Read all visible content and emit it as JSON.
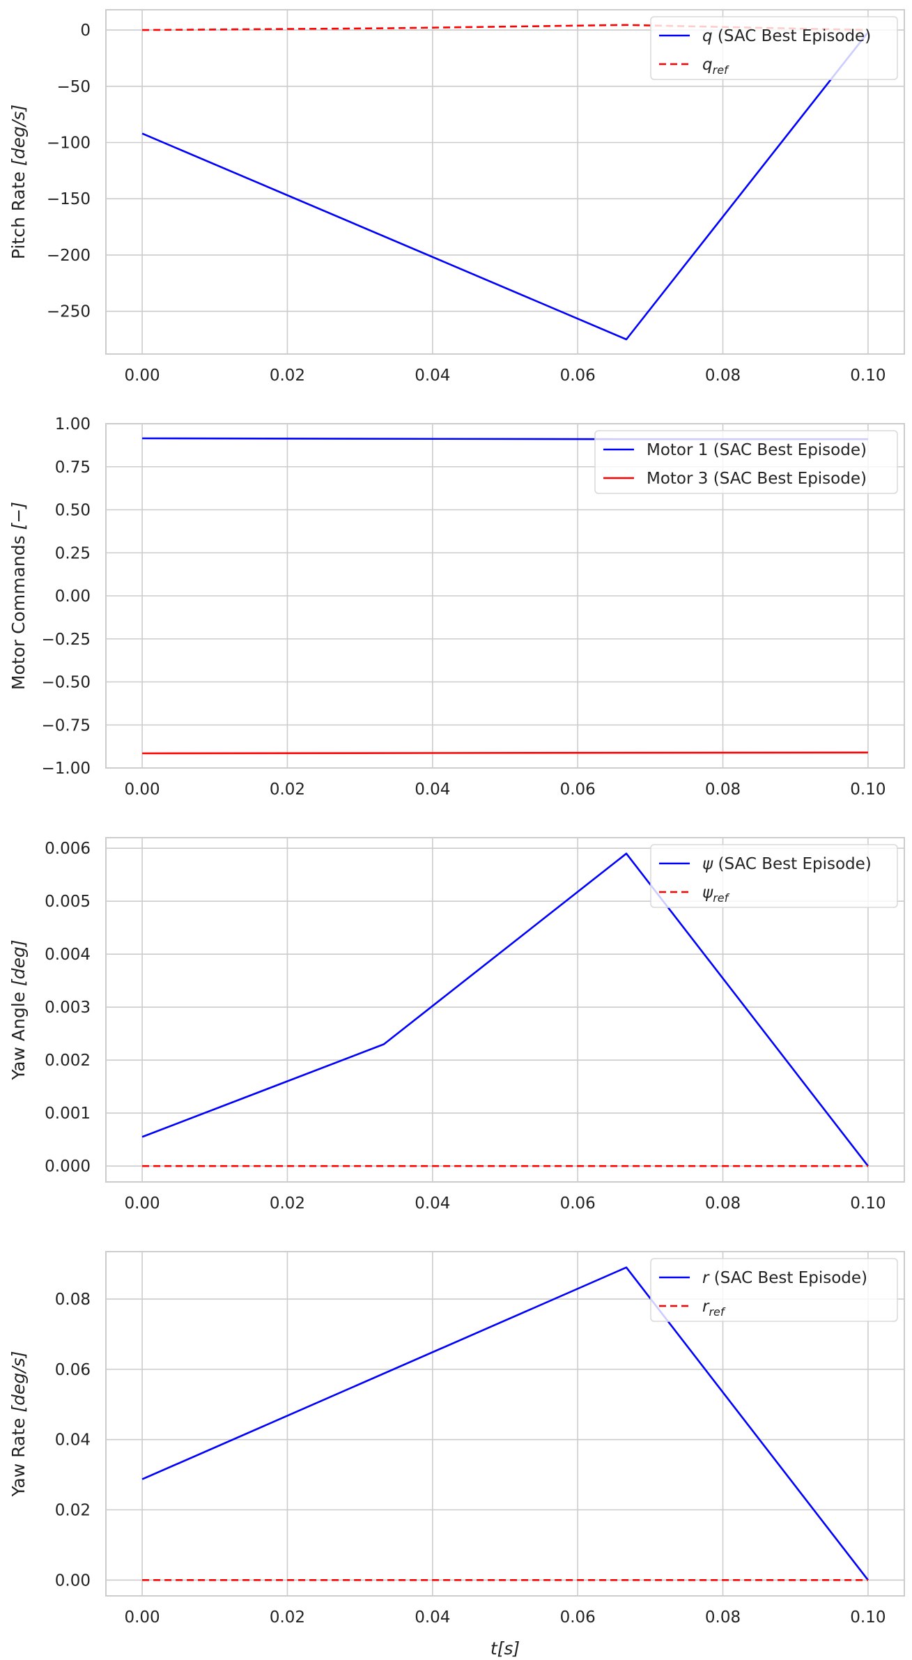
{
  "figure": {
    "xlabel_var": "t",
    "xlabel_unit": "[s]"
  },
  "colors": {
    "grid": "#cccccc",
    "frame": "#cccccc",
    "series_blue": "#0000ff",
    "series_red": "#ff0000",
    "background": "#ffffff"
  },
  "chart_data": [
    {
      "type": "line",
      "ylabel_text": "Pitch Rate ",
      "ylabel_unit": "[deg/s]",
      "xlim": [
        -0.005,
        0.105
      ],
      "ylim": [
        -288,
        18
      ],
      "x_ticks": [
        0.0,
        0.02,
        0.04,
        0.06,
        0.08,
        0.1
      ],
      "x_tick_labels": [
        "0.00",
        "0.02",
        "0.04",
        "0.06",
        "0.08",
        "0.10"
      ],
      "y_ticks": [
        0,
        -50,
        -100,
        -150,
        -200,
        -250
      ],
      "y_tick_labels": [
        "0",
        "−50",
        "−100",
        "−150",
        "−200",
        "−250"
      ],
      "grid": true,
      "legend_position": "top-right",
      "series": [
        {
          "name_var": "q",
          "name_sub": "",
          "name_rest": " (SAC Best Episode)",
          "color": "#0000ff",
          "dash": "solid",
          "x": [
            0.0,
            0.0667,
            0.1
          ],
          "y": [
            -92,
            -275,
            -2
          ]
        },
        {
          "name_var": "q",
          "name_sub": "ref",
          "name_rest": "",
          "color": "#ff0000",
          "dash": "dashed",
          "x": [
            0.0,
            0.0333,
            0.0667,
            0.1
          ],
          "y": [
            0,
            1.5,
            4.5,
            0
          ]
        }
      ]
    },
    {
      "type": "line",
      "ylabel_text": "Motor Commands ",
      "ylabel_unit": "[−]",
      "xlim": [
        -0.005,
        0.105
      ],
      "ylim": [
        -1.0,
        1.0
      ],
      "x_ticks": [
        0.0,
        0.02,
        0.04,
        0.06,
        0.08,
        0.1
      ],
      "x_tick_labels": [
        "0.00",
        "0.02",
        "0.04",
        "0.06",
        "0.08",
        "0.10"
      ],
      "y_ticks": [
        1.0,
        0.75,
        0.5,
        0.25,
        0.0,
        -0.25,
        -0.5,
        -0.75,
        -1.0
      ],
      "y_tick_labels": [
        "1.00",
        "0.75",
        "0.50",
        "0.25",
        "0.00",
        "−0.25",
        "−0.50",
        "−0.75",
        "−1.00"
      ],
      "grid": true,
      "legend_position": "top-right",
      "series": [
        {
          "name_var": "",
          "name_sub": "",
          "name_rest": "Motor 1 (SAC Best Episode)",
          "color": "#0000ff",
          "dash": "solid",
          "x": [
            0.0,
            0.0667,
            0.1
          ],
          "y": [
            0.915,
            0.91,
            0.91
          ]
        },
        {
          "name_var": "",
          "name_sub": "",
          "name_rest": "Motor 3 (SAC Best Episode)",
          "color": "#ff0000",
          "dash": "solid",
          "x": [
            0.0,
            0.1
          ],
          "y": [
            -0.915,
            -0.91
          ]
        }
      ]
    },
    {
      "type": "line",
      "ylabel_text": "Yaw Angle ",
      "ylabel_unit": "[deg]",
      "xlim": [
        -0.005,
        0.105
      ],
      "ylim": [
        -0.0003,
        0.0062
      ],
      "x_ticks": [
        0.0,
        0.02,
        0.04,
        0.06,
        0.08,
        0.1
      ],
      "x_tick_labels": [
        "0.00",
        "0.02",
        "0.04",
        "0.06",
        "0.08",
        "0.10"
      ],
      "y_ticks": [
        0.006,
        0.005,
        0.004,
        0.003,
        0.002,
        0.001,
        0.0
      ],
      "y_tick_labels": [
        "0.006",
        "0.005",
        "0.004",
        "0.003",
        "0.002",
        "0.001",
        "0.000"
      ],
      "grid": true,
      "legend_position": "top-right",
      "series": [
        {
          "name_var": "ψ",
          "name_sub": "",
          "name_rest": " (SAC Best Episode)",
          "color": "#0000ff",
          "dash": "solid",
          "x": [
            0.0,
            0.0333,
            0.0667,
            0.1
          ],
          "y": [
            0.00055,
            0.0023,
            0.0059,
            0.0
          ]
        },
        {
          "name_var": "ψ",
          "name_sub": "ref",
          "name_rest": "",
          "color": "#ff0000",
          "dash": "dashed",
          "x": [
            0.0,
            0.1
          ],
          "y": [
            0.0,
            0.0
          ]
        }
      ]
    },
    {
      "type": "line",
      "ylabel_text": "Yaw Rate ",
      "ylabel_unit": "[deg/s]",
      "xlim": [
        -0.005,
        0.105
      ],
      "ylim": [
        -0.0045,
        0.0935
      ],
      "x_ticks": [
        0.0,
        0.02,
        0.04,
        0.06,
        0.08,
        0.1
      ],
      "x_tick_labels": [
        "0.00",
        "0.02",
        "0.04",
        "0.06",
        "0.08",
        "0.10"
      ],
      "y_ticks": [
        0.08,
        0.06,
        0.04,
        0.02,
        0.0
      ],
      "y_tick_labels": [
        "0.08",
        "0.06",
        "0.04",
        "0.02",
        "0.00"
      ],
      "grid": true,
      "legend_position": "top-right",
      "series": [
        {
          "name_var": "r",
          "name_sub": "",
          "name_rest": " (SAC Best Episode)",
          "color": "#0000ff",
          "dash": "solid",
          "x": [
            0.0,
            0.0667,
            0.1
          ],
          "y": [
            0.0287,
            0.089,
            0.0
          ]
        },
        {
          "name_var": "r",
          "name_sub": "ref",
          "name_rest": "",
          "color": "#ff0000",
          "dash": "dashed",
          "x": [
            0.0,
            0.1
          ],
          "y": [
            0.0,
            0.0
          ]
        }
      ]
    }
  ]
}
